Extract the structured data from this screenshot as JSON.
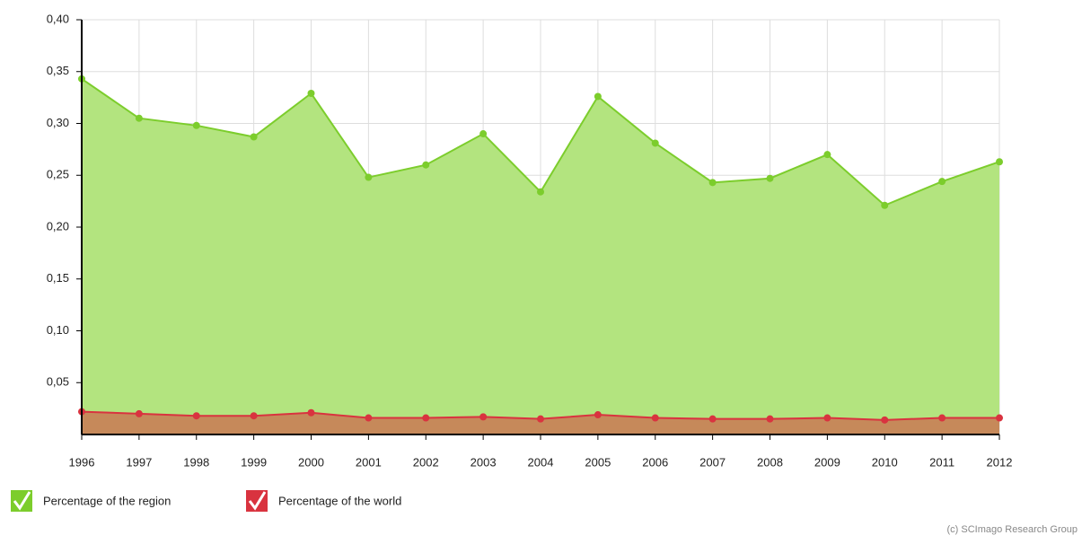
{
  "chart_data": {
    "type": "area",
    "categories": [
      "1996",
      "1997",
      "1998",
      "1999",
      "2000",
      "2001",
      "2002",
      "2003",
      "2004",
      "2005",
      "2006",
      "2007",
      "2008",
      "2009",
      "2010",
      "2011",
      "2012"
    ],
    "series": [
      {
        "name": "Percentage of the region",
        "color": "#7ccd2c",
        "fill": "#b3e47f",
        "values": [
          0.343,
          0.305,
          0.298,
          0.287,
          0.329,
          0.248,
          0.26,
          0.29,
          0.234,
          0.326,
          0.281,
          0.243,
          0.247,
          0.27,
          0.221,
          0.244,
          0.263
        ]
      },
      {
        "name": "Percentage of the world",
        "color": "#d9333f",
        "fill": "#c6895a",
        "values": [
          0.022,
          0.02,
          0.018,
          0.018,
          0.021,
          0.016,
          0.016,
          0.017,
          0.015,
          0.019,
          0.016,
          0.015,
          0.015,
          0.016,
          0.014,
          0.016,
          0.016
        ]
      }
    ],
    "ylim": [
      0,
      0.4
    ],
    "yticks": [
      {
        "value": 0.05,
        "label": "0,05"
      },
      {
        "value": 0.1,
        "label": "0,10"
      },
      {
        "value": 0.15,
        "label": "0,15"
      },
      {
        "value": 0.2,
        "label": "0,20"
      },
      {
        "value": 0.25,
        "label": "0,25"
      },
      {
        "value": 0.3,
        "label": "0,30"
      },
      {
        "value": 0.35,
        "label": "0,35"
      },
      {
        "value": 0.4,
        "label": "0,40"
      }
    ],
    "grid": true,
    "credit": "(c) SCImago Research Group"
  }
}
